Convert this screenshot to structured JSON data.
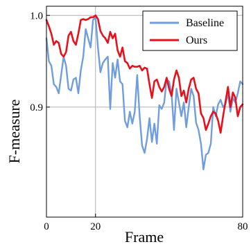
{
  "chart_data": {
    "type": "line",
    "xlabel": "Frame",
    "ylabel": "F-measure",
    "xlim": [
      0,
      80
    ],
    "ylim": [
      0.78,
      1.01
    ],
    "x_ticks": [
      0,
      20,
      80
    ],
    "x_tick_labels": [
      "0",
      "20",
      "80"
    ],
    "y_ticks": [
      0.9,
      1.0
    ],
    "y_tick_labels": [
      "0.9",
      "1.0"
    ],
    "grid": "at labeled ticks only (x=20, y=0.9, y=1.0)",
    "legend_position": "top-right",
    "x": [
      0,
      1,
      2,
      3,
      4,
      5,
      6,
      7,
      8,
      9,
      10,
      11,
      12,
      13,
      14,
      15,
      16,
      17,
      18,
      19,
      20,
      21,
      22,
      23,
      24,
      25,
      26,
      27,
      28,
      29,
      30,
      31,
      32,
      33,
      34,
      35,
      36,
      37,
      38,
      39,
      40,
      41,
      42,
      43,
      44,
      45,
      46,
      47,
      48,
      49,
      50,
      51,
      52,
      53,
      54,
      55,
      56,
      57,
      58,
      59,
      60,
      61,
      62,
      63,
      64,
      65,
      66,
      67,
      68,
      69,
      70,
      71,
      72,
      73,
      74,
      75,
      76,
      77,
      78,
      79,
      80
    ],
    "series": [
      {
        "name": "Baseline",
        "color": "#6f9de0",
        "values": [
          0.975,
          0.95,
          0.945,
          0.925,
          0.922,
          0.915,
          0.935,
          0.955,
          0.945,
          0.92,
          0.918,
          0.93,
          0.932,
          0.915,
          0.94,
          0.955,
          0.985,
          0.975,
          0.965,
          0.995,
          0.998,
          0.965,
          0.938,
          0.948,
          0.952,
          0.955,
          0.898,
          0.948,
          0.932,
          0.952,
          0.928,
          0.925,
          0.885,
          0.878,
          0.895,
          0.882,
          0.895,
          0.935,
          0.89,
          0.858,
          0.85,
          0.865,
          0.888,
          0.862,
          0.882,
          0.86,
          0.902,
          0.898,
          0.905,
          0.93,
          0.928,
          0.915,
          0.875,
          0.92,
          0.905,
          0.89,
          0.905,
          0.878,
          0.9,
          0.92,
          0.912,
          0.883,
          0.875,
          0.86,
          0.832,
          0.848,
          0.85,
          0.86,
          0.9,
          0.89,
          0.903,
          0.908,
          0.9,
          0.903,
          0.915,
          0.895,
          0.91,
          0.905,
          0.915,
          0.928,
          0.925
        ]
      },
      {
        "name": "Ours",
        "color": "#e8101a",
        "values": [
          0.995,
          0.988,
          0.98,
          0.968,
          0.972,
          0.97,
          0.958,
          0.955,
          0.96,
          0.978,
          0.982,
          0.972,
          0.968,
          0.98,
          0.995,
          0.996,
          0.995,
          0.996,
          0.998,
          0.998,
          1.0,
          0.996,
          0.983,
          0.978,
          0.975,
          0.97,
          0.982,
          0.975,
          0.98,
          0.962,
          0.955,
          0.965,
          0.95,
          0.948,
          0.942,
          0.945,
          0.944,
          0.944,
          0.945,
          0.94,
          0.943,
          0.942,
          0.925,
          0.91,
          0.928,
          0.93,
          0.922,
          0.917,
          0.922,
          0.932,
          0.92,
          0.912,
          0.93,
          0.94,
          0.932,
          0.912,
          0.918,
          0.905,
          0.92,
          0.93,
          0.932,
          0.92,
          0.915,
          0.893,
          0.888,
          0.875,
          0.882,
          0.89,
          0.895,
          0.893,
          0.885,
          0.872,
          0.89,
          0.906,
          0.922,
          0.9,
          0.916,
          0.91,
          0.89,
          0.9,
          0.903
        ]
      }
    ]
  }
}
